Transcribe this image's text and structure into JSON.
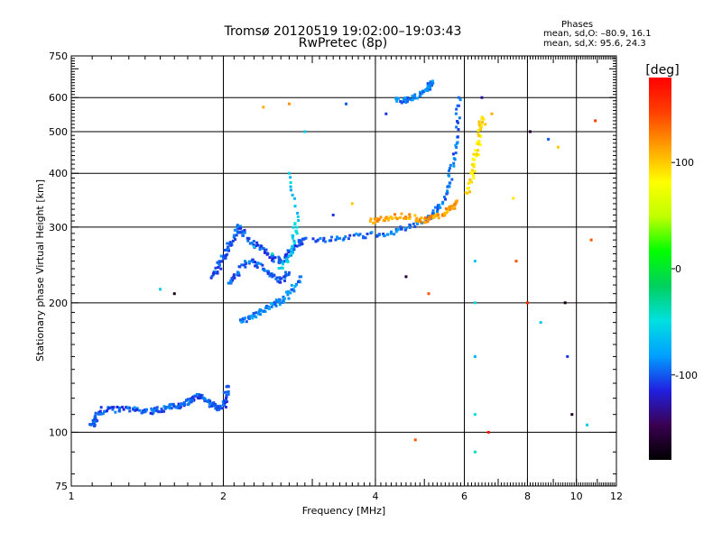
{
  "title": {
    "line1": "Tromsø 20120519 19:02:00–19:03:43",
    "line2": "RwPretec (8p)"
  },
  "phases": {
    "title": "Phases",
    "line1": "mean, sd,O: –80.9, 16.1",
    "line2": "mean, sd,X:  95.6, 24.3"
  },
  "colorbar": {
    "label": "[deg]",
    "min": -180,
    "max": 180,
    "ticks": [
      100,
      0,
      -100
    ],
    "stops": [
      "#000000",
      "#3a0050",
      "#2020e0",
      "#00a0ff",
      "#00e0e0",
      "#00d060",
      "#00ff00",
      "#c0ff00",
      "#ffff00",
      "#ffa000",
      "#ff4000",
      "#ff0000"
    ]
  },
  "chart_data": {
    "type": "scatter",
    "title": "Tromsø 20120519 19:02:00–19:03:43",
    "subtitle": "RwPretec (8p)",
    "xlabel": "Frequency [MHz]",
    "ylabel": "Stationary phase Virtual Height [km]",
    "xscale": "log",
    "yscale": "log",
    "xlim": [
      1,
      12
    ],
    "ylim": [
      75,
      750
    ],
    "xticks": [
      1,
      2,
      4,
      6,
      8,
      10,
      12
    ],
    "yticks": [
      75,
      100,
      200,
      300,
      400,
      500,
      600,
      750
    ],
    "grid": true,
    "color_by": "phase [deg]",
    "traces": [
      {
        "phase": -100,
        "points": [
          [
            1.1,
            103
          ],
          [
            1.11,
            106
          ],
          [
            1.12,
            109
          ],
          [
            1.16,
            113
          ],
          [
            1.23,
            113
          ],
          [
            1.3,
            113
          ],
          [
            1.38,
            112
          ],
          [
            1.45,
            112
          ],
          [
            1.5,
            113
          ],
          [
            1.55,
            114
          ],
          [
            1.6,
            115
          ],
          [
            1.65,
            116
          ],
          [
            1.7,
            118
          ],
          [
            1.75,
            120
          ],
          [
            1.8,
            122
          ],
          [
            1.85,
            118
          ],
          [
            1.9,
            116
          ],
          [
            1.95,
            114
          ],
          [
            2.0,
            115
          ],
          [
            2.02,
            120
          ],
          [
            2.04,
            128
          ]
        ]
      },
      {
        "phase": -100,
        "points": [
          [
            1.9,
            230
          ],
          [
            1.95,
            240
          ],
          [
            2.0,
            255
          ],
          [
            2.05,
            270
          ],
          [
            2.1,
            285
          ],
          [
            2.15,
            300
          ],
          [
            2.2,
            290
          ],
          [
            2.3,
            275
          ],
          [
            2.4,
            265
          ],
          [
            2.5,
            255
          ],
          [
            2.6,
            250
          ],
          [
            2.7,
            260
          ],
          [
            2.8,
            275
          ],
          [
            2.9,
            282
          ]
        ]
      },
      {
        "phase": -100,
        "points": [
          [
            2.05,
            220
          ],
          [
            2.1,
            230
          ],
          [
            2.2,
            245
          ],
          [
            2.3,
            250
          ],
          [
            2.4,
            240
          ],
          [
            2.5,
            232
          ],
          [
            2.6,
            225
          ],
          [
            2.7,
            235
          ]
        ]
      },
      {
        "phase": -90,
        "points": [
          [
            2.15,
            180
          ],
          [
            2.25,
            185
          ],
          [
            2.35,
            190
          ],
          [
            2.45,
            195
          ],
          [
            2.55,
            200
          ],
          [
            2.65,
            205
          ],
          [
            2.75,
            215
          ],
          [
            2.85,
            230
          ]
        ]
      },
      {
        "phase": -95,
        "points": [
          [
            3.0,
            280
          ],
          [
            3.3,
            282
          ],
          [
            3.6,
            285
          ],
          [
            4.0,
            288
          ],
          [
            4.3,
            292
          ],
          [
            4.6,
            298
          ],
          [
            4.9,
            307
          ],
          [
            5.2,
            320
          ],
          [
            5.4,
            340
          ],
          [
            5.6,
            380
          ],
          [
            5.7,
            430
          ],
          [
            5.8,
            500
          ],
          [
            5.85,
            600
          ]
        ]
      },
      {
        "phase": -90,
        "points": [
          [
            4.4,
            590
          ],
          [
            4.6,
            593
          ],
          [
            4.8,
            600
          ],
          [
            5.0,
            618
          ],
          [
            5.1,
            635
          ],
          [
            5.2,
            648
          ]
        ]
      },
      {
        "phase": 115,
        "points": [
          [
            3.9,
            310
          ],
          [
            4.1,
            312
          ],
          [
            4.3,
            318
          ],
          [
            4.6,
            318
          ],
          [
            4.9,
            312
          ],
          [
            5.1,
            312
          ],
          [
            5.3,
            318
          ],
          [
            5.5,
            325
          ],
          [
            5.7,
            335
          ],
          [
            5.8,
            345
          ]
        ]
      },
      {
        "phase": 90,
        "points": [
          [
            6.1,
            360
          ],
          [
            6.2,
            390
          ],
          [
            6.3,
            430
          ],
          [
            6.4,
            470
          ],
          [
            6.45,
            510
          ],
          [
            6.5,
            540
          ]
        ]
      },
      {
        "phase": -60,
        "points": [
          [
            2.6,
            240
          ],
          [
            2.7,
            255
          ],
          [
            2.75,
            280
          ],
          [
            2.8,
            310
          ],
          [
            2.7,
            400
          ]
        ]
      }
    ],
    "scatter_points": [
      [
        2.3,
        270,
        -60
      ],
      [
        2.5,
        260,
        -40
      ],
      [
        2.8,
        290,
        -50
      ],
      [
        4.2,
        550,
        -110
      ],
      [
        6.5,
        600,
        -130
      ],
      [
        6.6,
        520,
        100
      ],
      [
        6.8,
        550,
        110
      ],
      [
        8.1,
        500,
        -160
      ],
      [
        8.8,
        480,
        -100
      ],
      [
        9.2,
        460,
        100
      ],
      [
        6.3,
        250,
        -60
      ],
      [
        6.3,
        200,
        -50
      ],
      [
        6.3,
        150,
        -70
      ],
      [
        6.3,
        110,
        -50
      ],
      [
        6.3,
        90,
        -40
      ],
      [
        7.5,
        350,
        90
      ],
      [
        7.6,
        250,
        140
      ],
      [
        8.0,
        200,
        160
      ],
      [
        8.5,
        180,
        -60
      ],
      [
        9.5,
        200,
        -170
      ],
      [
        9.6,
        150,
        -110
      ],
      [
        9.8,
        110,
        -160
      ],
      [
        10.5,
        104,
        -60
      ],
      [
        10.7,
        280,
        140
      ],
      [
        10.9,
        530,
        150
      ],
      [
        6.7,
        100,
        170
      ],
      [
        4.8,
        96,
        140
      ],
      [
        5.1,
        210,
        140
      ],
      [
        4.6,
        230,
        -160
      ],
      [
        1.6,
        210,
        -170
      ],
      [
        1.5,
        215,
        -60
      ],
      [
        3.3,
        320,
        -110
      ],
      [
        3.6,
        340,
        100
      ],
      [
        2.9,
        500,
        -60
      ],
      [
        3.5,
        580,
        -100
      ],
      [
        2.7,
        580,
        120
      ],
      [
        2.4,
        570,
        110
      ]
    ]
  }
}
